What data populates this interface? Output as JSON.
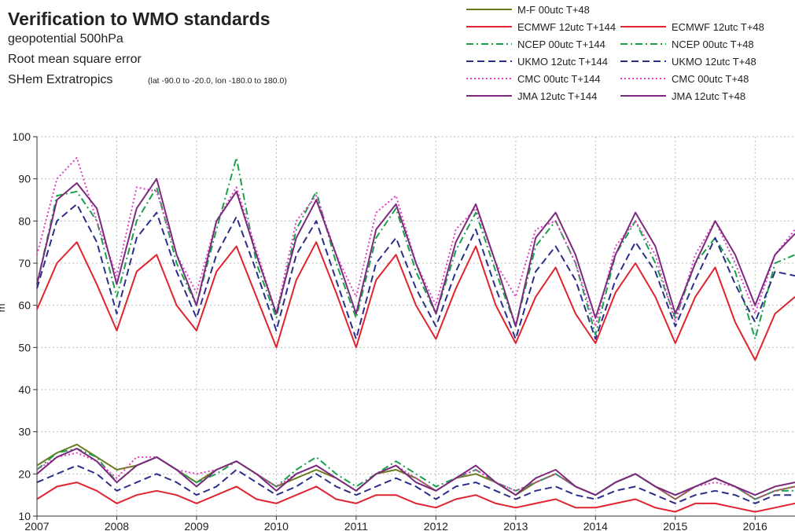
{
  "chart_data": {
    "type": "line",
    "title": "Verification to WMO standards",
    "subtitle_lines": [
      "geopotential 500hPa",
      "Root mean square error"
    ],
    "region": "SHem Extratropics",
    "region_note": "(lat  -90.0 to -20.0, lon  -180.0 to  180.0)",
    "y_label": "m",
    "xlim": [
      2007,
      2016.5
    ],
    "xticks": [
      2007,
      2008,
      2009,
      2010,
      2011,
      2012,
      2013,
      2014,
      2015,
      2016
    ],
    "ylim": [
      10,
      100
    ],
    "yticks": [
      10,
      20,
      30,
      40,
      50,
      60,
      70,
      80,
      90,
      100
    ],
    "grid": true,
    "x": [
      2007,
      2007.25,
      2007.5,
      2007.75,
      2008,
      2008.25,
      2008.5,
      2008.75,
      2009,
      2009.25,
      2009.5,
      2009.75,
      2010,
      2010.25,
      2010.5,
      2010.75,
      2011,
      2011.25,
      2011.5,
      2011.75,
      2012,
      2012.25,
      2012.5,
      2012.75,
      2013,
      2013.25,
      2013.5,
      2013.75,
      2014,
      2014.25,
      2014.5,
      2014.75,
      2015,
      2015.25,
      2015.5,
      2015.75,
      2016,
      2016.25,
      2016.5
    ],
    "series": [
      {
        "name": "M-F 00utc T+48",
        "color": "#6b7a1e",
        "dash": "solid",
        "values": [
          22,
          25,
          27,
          24,
          21,
          22,
          24,
          21,
          18,
          21,
          23,
          20,
          17,
          19,
          21,
          19,
          16,
          20,
          21,
          19,
          16,
          19,
          20,
          18,
          15,
          18,
          20,
          17,
          15,
          18,
          20,
          17,
          14,
          17,
          19,
          17,
          14,
          16,
          17
        ]
      },
      {
        "name": "ECMWF 12utc T+144",
        "color": "#e0242f",
        "dash": "solid",
        "values": [
          59,
          70,
          75,
          65,
          54,
          68,
          72,
          60,
          54,
          68,
          74,
          62,
          50,
          66,
          75,
          63,
          50,
          66,
          72,
          60,
          52,
          64,
          74,
          60,
          51,
          62,
          69,
          58,
          51,
          63,
          70,
          62,
          51,
          62,
          69,
          56,
          47,
          58,
          62
        ]
      },
      {
        "name": "ECMWF 12utc T+48",
        "color": "#e0242f",
        "dash": "solid",
        "values": [
          14,
          17,
          18,
          16,
          13,
          15,
          16,
          15,
          13,
          15,
          17,
          14,
          13,
          15,
          17,
          14,
          13,
          15,
          15,
          13,
          12,
          14,
          15,
          13,
          12,
          13,
          14,
          12,
          12,
          13,
          14,
          12,
          11,
          13,
          13,
          12,
          11,
          12,
          13
        ]
      },
      {
        "name": "NCEP 00utc T+144",
        "color": "#1aa04a",
        "dash": "dashdot",
        "values": [
          65,
          86,
          87,
          80,
          62,
          80,
          88,
          70,
          60,
          78,
          95,
          70,
          57,
          78,
          87,
          70,
          57,
          76,
          83,
          68,
          58,
          73,
          82,
          68,
          55,
          74,
          80,
          70,
          53,
          72,
          80,
          70,
          57,
          70,
          76,
          68,
          52,
          70,
          72
        ]
      },
      {
        "name": "NCEP 00utc T+48",
        "color": "#1aa04a",
        "dash": "dashdot",
        "values": [
          21,
          25,
          26,
          24,
          18,
          22,
          24,
          21,
          18,
          20,
          23,
          20,
          17,
          21,
          24,
          20,
          17,
          20,
          23,
          20,
          17,
          19,
          21,
          18,
          16,
          18,
          20,
          17,
          15,
          18,
          20,
          17,
          15,
          17,
          19,
          17,
          14,
          16,
          16
        ]
      },
      {
        "name": "UKMO 12utc T+144",
        "color": "#2b2f8a",
        "dash": "dashed",
        "values": [
          64,
          80,
          84,
          75,
          58,
          76,
          82,
          68,
          57,
          72,
          81,
          68,
          54,
          72,
          80,
          66,
          52,
          70,
          76,
          64,
          55,
          68,
          78,
          64,
          52,
          68,
          74,
          66,
          52,
          66,
          75,
          68,
          55,
          66,
          76,
          65,
          56,
          68,
          67
        ]
      },
      {
        "name": "UKMO 12utc T+48",
        "color": "#2b2f8a",
        "dash": "dashed",
        "values": [
          18,
          20,
          22,
          20,
          16,
          18,
          20,
          18,
          15,
          17,
          21,
          18,
          15,
          17,
          20,
          17,
          15,
          17,
          19,
          17,
          14,
          17,
          18,
          16,
          14,
          16,
          17,
          15,
          14,
          16,
          17,
          15,
          13,
          15,
          16,
          15,
          13,
          15,
          15
        ]
      },
      {
        "name": "CMC 00utc T+144",
        "color": "#e040c0",
        "dash": "dotted",
        "values": [
          72,
          90,
          95,
          80,
          67,
          88,
          87,
          72,
          63,
          80,
          88,
          73,
          58,
          80,
          86,
          72,
          62,
          82,
          86,
          70,
          60,
          78,
          83,
          70,
          62,
          78,
          80,
          70,
          55,
          74,
          80,
          72,
          56,
          72,
          80,
          70,
          58,
          72,
          78
        ]
      },
      {
        "name": "CMC 00utc T+48",
        "color": "#e040c0",
        "dash": "dotted",
        "values": [
          21,
          24,
          25,
          23,
          19,
          24,
          24,
          21,
          20,
          21,
          23,
          20,
          17,
          20,
          22,
          19,
          16,
          20,
          22,
          19,
          16,
          19,
          21,
          18,
          16,
          18,
          20,
          17,
          15,
          18,
          20,
          17,
          14,
          17,
          18,
          17,
          14,
          16,
          17
        ]
      },
      {
        "name": "JMA 12utc T+144",
        "color": "#7b2a7e",
        "dash": "solid",
        "values": [
          65,
          85,
          89,
          83,
          65,
          83,
          90,
          72,
          60,
          80,
          87,
          72,
          58,
          76,
          85,
          72,
          58,
          78,
          84,
          70,
          58,
          75,
          84,
          70,
          55,
          76,
          82,
          72,
          57,
          72,
          82,
          74,
          58,
          70,
          80,
          72,
          60,
          72,
          77
        ]
      },
      {
        "name": "JMA 12utc T+48",
        "color": "#7b2a7e",
        "dash": "solid",
        "values": [
          20,
          24,
          26,
          23,
          18,
          22,
          24,
          21,
          17,
          21,
          23,
          20,
          16,
          20,
          22,
          19,
          16,
          20,
          22,
          18,
          16,
          19,
          22,
          18,
          15,
          19,
          21,
          17,
          15,
          18,
          20,
          17,
          15,
          17,
          19,
          17,
          15,
          17,
          18
        ]
      }
    ]
  }
}
